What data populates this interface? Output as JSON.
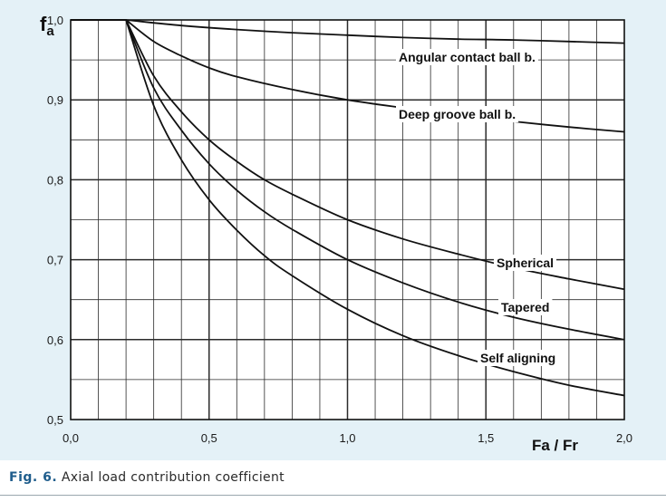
{
  "chart_data": {
    "type": "line",
    "ylabel_main": "f",
    "ylabel_sub": "a",
    "xlabel": "Fa / Fr",
    "xlim": [
      0.0,
      2.0
    ],
    "ylim": [
      0.5,
      1.0
    ],
    "grid": true,
    "x_ticks": [
      0.0,
      0.5,
      1.0,
      1.5,
      2.0
    ],
    "x_tick_labels": [
      "0,0",
      "0,5",
      "1,0",
      "1,5",
      "2,0"
    ],
    "y_ticks": [
      0.5,
      0.6,
      0.7,
      0.8,
      0.9,
      1.0
    ],
    "y_tick_labels": [
      "0,5",
      "0,6",
      "0,7",
      "0,8",
      "0,9",
      "1,0"
    ],
    "series": [
      {
        "name": "Angular contact ball b.",
        "x": [
          0.0,
          0.2,
          0.4,
          0.6,
          0.8,
          1.0,
          1.2,
          1.4,
          1.6,
          1.8,
          2.0
        ],
        "y": [
          1.0,
          1.0,
          0.993,
          0.988,
          0.984,
          0.981,
          0.978,
          0.976,
          0.975,
          0.973,
          0.971
        ]
      },
      {
        "name": "Deep groove ball b.",
        "x": [
          0.0,
          0.2,
          0.3,
          0.4,
          0.5,
          0.6,
          0.8,
          1.0,
          1.2,
          1.4,
          1.6,
          1.8,
          2.0
        ],
        "y": [
          1.0,
          1.0,
          0.973,
          0.955,
          0.94,
          0.929,
          0.913,
          0.9,
          0.89,
          0.881,
          0.873,
          0.866,
          0.86
        ]
      },
      {
        "name": "Spherical",
        "x": [
          0.0,
          0.2,
          0.3,
          0.4,
          0.5,
          0.6,
          0.7,
          0.8,
          1.0,
          1.2,
          1.4,
          1.6,
          1.8,
          2.0
        ],
        "y": [
          1.0,
          1.0,
          0.93,
          0.885,
          0.85,
          0.823,
          0.8,
          0.782,
          0.75,
          0.726,
          0.707,
          0.69,
          0.676,
          0.663
        ]
      },
      {
        "name": "Tapered",
        "x": [
          0.0,
          0.2,
          0.3,
          0.4,
          0.5,
          0.6,
          0.7,
          0.8,
          1.0,
          1.2,
          1.4,
          1.6,
          1.8,
          2.0
        ],
        "y": [
          1.0,
          1.0,
          0.915,
          0.862,
          0.82,
          0.787,
          0.76,
          0.738,
          0.7,
          0.671,
          0.647,
          0.628,
          0.613,
          0.6
        ]
      },
      {
        "name": "Self aligning",
        "x": [
          0.0,
          0.2,
          0.3,
          0.4,
          0.5,
          0.6,
          0.7,
          0.8,
          1.0,
          1.2,
          1.4,
          1.6,
          1.8,
          2.0
        ],
        "y": [
          1.0,
          1.0,
          0.893,
          0.825,
          0.775,
          0.737,
          0.705,
          0.68,
          0.638,
          0.605,
          0.58,
          0.56,
          0.543,
          0.53
        ]
      }
    ],
    "annotations": [
      {
        "text": "Angular contact ball b.",
        "series": 0
      },
      {
        "text": "Deep groove ball b.",
        "series": 1
      },
      {
        "text": "Spherical",
        "series": 2
      },
      {
        "text": "Tapered",
        "series": 3
      },
      {
        "text": "Self aligning",
        "series": 4
      }
    ]
  },
  "caption": {
    "figure_number": "Fig. 6.",
    "text": "Axial load contribution coefficient"
  },
  "colors": {
    "panel_background": "#e4f1f7",
    "plot_background": "#ffffff",
    "line": "#111111",
    "grid": "#2b2b2b",
    "caption_accent": "#1f5d8c"
  }
}
